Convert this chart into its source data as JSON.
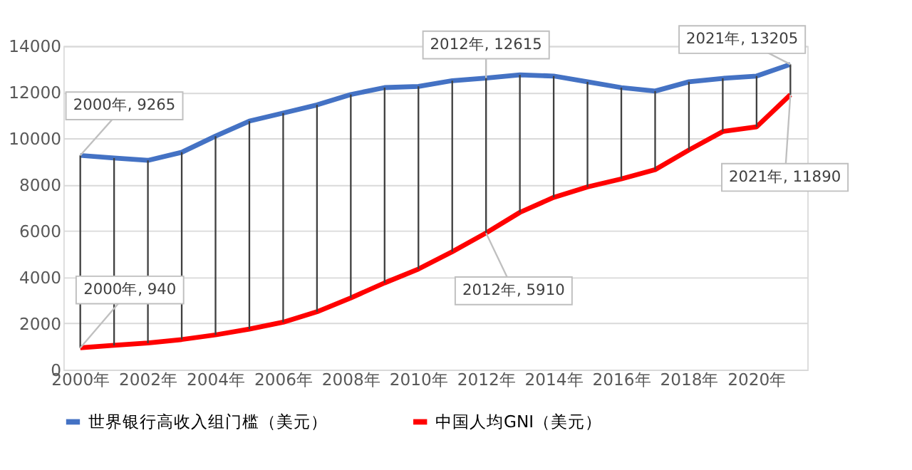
{
  "chart_data": {
    "type": "line",
    "x": [
      2000,
      2001,
      2002,
      2003,
      2004,
      2005,
      2006,
      2007,
      2008,
      2009,
      2010,
      2011,
      2012,
      2013,
      2014,
      2015,
      2016,
      2017,
      2018,
      2019,
      2020,
      2021
    ],
    "series": [
      {
        "name": "世界银行高收入组门槛（美元）",
        "color": "#4472c4",
        "values": [
          9265,
          9150,
          9050,
          9400,
          10100,
          10750,
          11100,
          11450,
          11900,
          12200,
          12250,
          12500,
          12615,
          12750,
          12700,
          12450,
          12200,
          12050,
          12450,
          12600,
          12700,
          13205
        ]
      },
      {
        "name": "中国人均GNI（美元）",
        "color": "#ff0000",
        "values": [
          940,
          1050,
          1150,
          1300,
          1500,
          1750,
          2050,
          2500,
          3100,
          3750,
          4350,
          5100,
          5910,
          6800,
          7450,
          7900,
          8250,
          8650,
          9500,
          10300,
          10500,
          11890
        ],
        "errors": [
          [
            940,
            9265
          ],
          [
            1050,
            9150
          ],
          [
            1150,
            9050
          ],
          [
            1300,
            9400
          ],
          [
            1500,
            10100
          ],
          [
            1750,
            10750
          ],
          [
            2050,
            11100
          ],
          [
            2500,
            11450
          ],
          [
            3100,
            11900
          ],
          [
            3750,
            12200
          ],
          [
            4350,
            12250
          ],
          [
            5100,
            12500
          ],
          [
            5910,
            12615
          ],
          [
            6800,
            12750
          ],
          [
            7450,
            12700
          ],
          [
            7900,
            12450
          ],
          [
            8250,
            12200
          ],
          [
            8650,
            12050
          ],
          [
            9500,
            12450
          ],
          [
            10300,
            12600
          ],
          [
            10500,
            12700
          ],
          [
            11890,
            13205
          ]
        ]
      }
    ],
    "xlim": [
      1999.5,
      2021.5
    ],
    "xticks": [
      {
        "value": 2000,
        "label": "2000年"
      },
      {
        "value": 2002,
        "label": "2002年"
      },
      {
        "value": 2004,
        "label": "2004年"
      },
      {
        "value": 2006,
        "label": "2006年"
      },
      {
        "value": 2008,
        "label": "2008年"
      },
      {
        "value": 2010,
        "label": "2010年"
      },
      {
        "value": 2012,
        "label": "2012年"
      },
      {
        "value": 2014,
        "label": "2014年"
      },
      {
        "value": 2016,
        "label": "2016年"
      },
      {
        "value": 2018,
        "label": "2018年"
      },
      {
        "value": 2020,
        "label": "2020年"
      }
    ],
    "ylim": [
      0,
      14000
    ],
    "yticks": [
      0,
      2000,
      4000,
      6000,
      8000,
      10000,
      12000,
      14000
    ],
    "grid": "y",
    "legend": "bottom",
    "marker": "none",
    "line_style": "solid",
    "annotations": [
      {
        "text": "2000年, 9265",
        "x": 2000,
        "y": 9265
      },
      {
        "text": "2000年, 940",
        "x": 2000,
        "y": 940
      },
      {
        "text": "2012年, 12615",
        "x": 2012,
        "y": 12615
      },
      {
        "text": "2012年, 5910",
        "x": 2012,
        "y": 5910
      },
      {
        "text": "2021年, 13205",
        "x": 2021,
        "y": 13205
      },
      {
        "text": "2021年, 11890",
        "x": 2021,
        "y": 11890
      }
    ]
  }
}
